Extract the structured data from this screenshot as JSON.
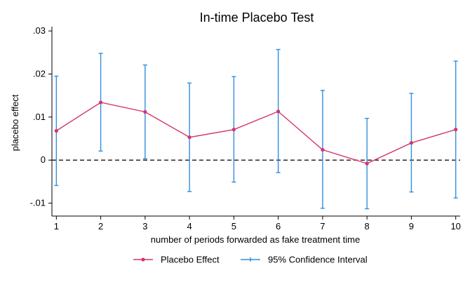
{
  "chart_data": {
    "type": "line",
    "title": "In-time Placebo Test",
    "xlabel": "number of periods forwarded as fake treatment time",
    "ylabel": "placebo effect",
    "x": [
      1,
      2,
      3,
      4,
      5,
      6,
      7,
      8,
      9,
      10
    ],
    "x_tick_labels": [
      "1",
      "2",
      "3",
      "4",
      "5",
      "6",
      "7",
      "8",
      "9",
      "10"
    ],
    "y_ticks": [
      -0.01,
      0,
      0.01,
      0.02,
      0.03
    ],
    "y_tick_labels": [
      "-.01",
      "0",
      ".01",
      ".02",
      ".03"
    ],
    "xlim": [
      0.9,
      10.1
    ],
    "ylim": [
      -0.013,
      0.031
    ],
    "grid": false,
    "reference_line": {
      "y": 0,
      "style": "dashed"
    },
    "series": [
      {
        "name": "Placebo Effect",
        "type": "line",
        "color": "#d6336c",
        "values": [
          0.0068,
          0.0134,
          0.0112,
          0.0053,
          0.0071,
          0.0113,
          0.0024,
          -0.0008,
          0.004,
          0.0071
        ]
      },
      {
        "name": "95% Confidence Interval",
        "type": "errorbar",
        "color": "#2f8fde",
        "lower": [
          -0.0059,
          0.0021,
          0.0003,
          -0.0073,
          -0.0051,
          -0.0029,
          -0.0112,
          -0.0113,
          -0.0074,
          -0.0088
        ],
        "upper": [
          0.0195,
          0.0248,
          0.0221,
          0.0179,
          0.0194,
          0.0257,
          0.0162,
          0.0097,
          0.0155,
          0.023
        ]
      }
    ],
    "legend": {
      "position": "bottom",
      "entries": [
        "Placebo Effect",
        "95% Confidence Interval"
      ]
    }
  }
}
